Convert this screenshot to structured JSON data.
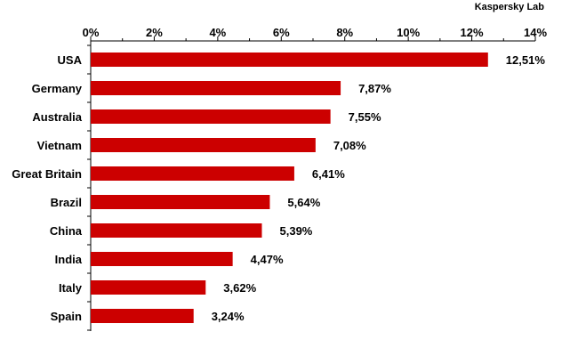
{
  "brand": {
    "text": "Kaspersky Lab",
    "color": "#e0001a"
  },
  "colors": {
    "bar": "#cc0000",
    "axis": "#000000",
    "text": "#000000"
  },
  "chart_data": {
    "type": "bar",
    "orientation": "horizontal",
    "categories": [
      "USA",
      "Germany",
      "Australia",
      "Vietnam",
      "Great Britain",
      "Brazil",
      "China",
      "India",
      "Italy",
      "Spain"
    ],
    "values": [
      12.51,
      7.87,
      7.55,
      7.08,
      6.41,
      5.64,
      5.39,
      4.47,
      3.62,
      3.24
    ],
    "value_labels": [
      "12,51%",
      "7,87%",
      "7,55%",
      "7,08%",
      "6,41%",
      "5,64%",
      "5,39%",
      "4,47%",
      "3,62%",
      "3,24%"
    ],
    "xlim": [
      0,
      14
    ],
    "x_ticks": [
      0,
      2,
      4,
      6,
      8,
      10,
      12,
      14
    ],
    "x_tick_labels": [
      "0%",
      "2%",
      "4%",
      "6%",
      "8%",
      "10%",
      "12%",
      "14%"
    ],
    "axis_position": "top",
    "grid": false,
    "legend": "none",
    "title": "",
    "xlabel": "",
    "ylabel": ""
  }
}
